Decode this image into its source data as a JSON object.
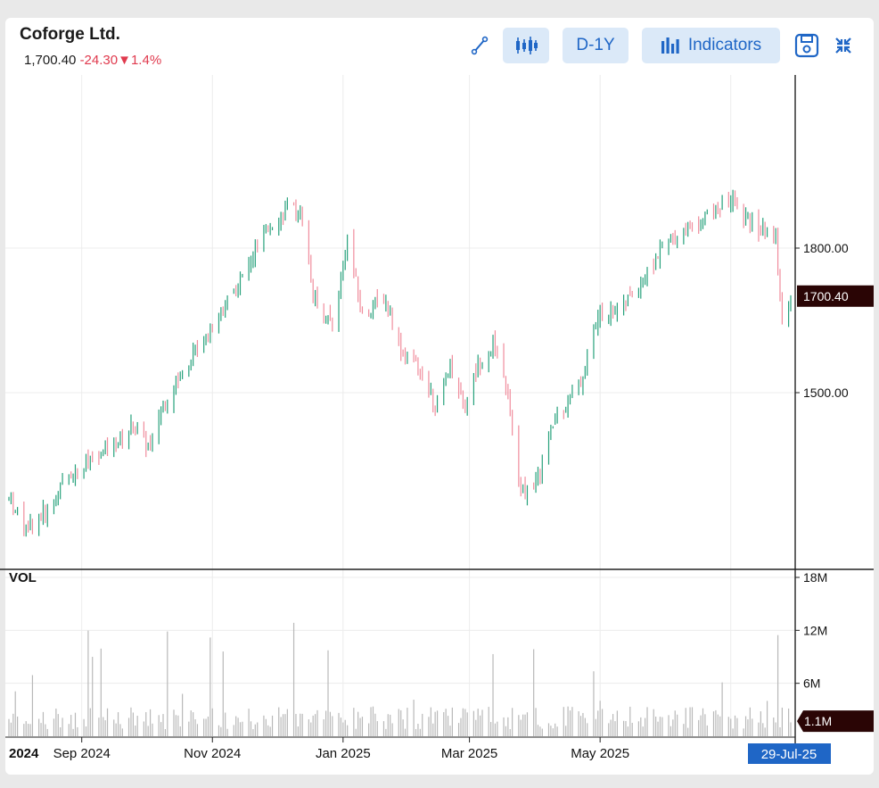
{
  "header": {
    "title": "Coforge Ltd.",
    "price": "1,700.40",
    "change": "-24.30",
    "change_pct": "1.4%",
    "arrow_glyph": "▼"
  },
  "toolbar": {
    "draw_icon": "line-draw-icon",
    "candle_icon": "candlestick-icon",
    "range_label": "D-1Y",
    "indicators_label": "Indicators",
    "save_icon": "save-icon",
    "collapse_icon": "collapse-icon"
  },
  "colors": {
    "up": "#26a17b",
    "down": "#f08c9c",
    "accent": "#1f66c6",
    "label_bg": "#2a0505"
  },
  "chart_data": {
    "type": "candlestick",
    "price_axis": {
      "ticks": [
        1500,
        1800
      ],
      "tick_labels": [
        "1500.00",
        "1800.00"
      ],
      "last_price": 1700.4,
      "last_label": "1700.40",
      "grid": true
    },
    "volume_axis": {
      "label": "VOL",
      "ticks": [
        6,
        12,
        18
      ],
      "tick_labels": [
        "6M",
        "12M",
        "18M"
      ],
      "last_volume": 1.1,
      "last_label": "1.1M"
    },
    "x_axis": {
      "tick_labels": [
        "2024",
        "Sep 2024",
        "Nov 2024",
        "Jan 2025",
        "Mar 2025",
        "May 2025"
      ],
      "cursor_label": "29-Jul-25"
    },
    "series_anchors": {
      "description_values": [
        [
          "2024-07-29",
          1280
        ],
        [
          "2024-08-05",
          1220
        ],
        [
          "2024-08-15",
          1250
        ],
        [
          "2024-08-26",
          1330
        ],
        [
          "2024-09-10",
          1370
        ],
        [
          "2024-09-25",
          1430
        ],
        [
          "2024-10-03",
          1380
        ],
        [
          "2024-10-08",
          1470
        ],
        [
          "2024-10-20",
          1560
        ],
        [
          "2024-11-01",
          1640
        ],
        [
          "2024-11-15",
          1740
        ],
        [
          "2024-11-28",
          1850
        ],
        [
          "2024-12-06",
          1880
        ],
        [
          "2024-12-13",
          1870
        ],
        [
          "2024-12-18",
          1700
        ],
        [
          "2024-12-27",
          1640
        ],
        [
          "2025-01-03",
          1820
        ],
        [
          "2025-01-10",
          1660
        ],
        [
          "2025-01-20",
          1700
        ],
        [
          "2025-01-29",
          1580
        ],
        [
          "2025-02-07",
          1540
        ],
        [
          "2025-02-14",
          1470
        ],
        [
          "2025-02-20",
          1560
        ],
        [
          "2025-02-27",
          1470
        ],
        [
          "2025-03-05",
          1560
        ],
        [
          "2025-03-12",
          1600
        ],
        [
          "2025-03-18",
          1520
        ],
        [
          "2025-03-25",
          1290
        ],
        [
          "2025-04-02",
          1320
        ],
        [
          "2025-04-10",
          1450
        ],
        [
          "2025-04-22",
          1520
        ],
        [
          "2025-04-30",
          1660
        ],
        [
          "2025-05-12",
          1680
        ],
        [
          "2025-05-22",
          1740
        ],
        [
          "2025-05-30",
          1800
        ],
        [
          "2025-06-10",
          1840
        ],
        [
          "2025-06-24",
          1880
        ],
        [
          "2025-07-02",
          1900
        ],
        [
          "2025-07-10",
          1850
        ],
        [
          "2025-07-22",
          1820
        ],
        [
          "2025-07-25",
          1640
        ],
        [
          "2025-07-29",
          1700
        ]
      ]
    }
  }
}
